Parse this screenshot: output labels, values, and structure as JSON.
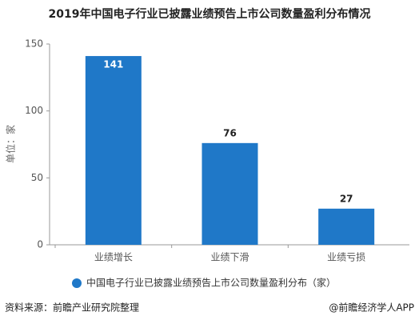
{
  "chart_data": {
    "type": "bar",
    "title": "2019年中国电子行业已披露业绩预告上市公司数量盈利分布情况",
    "y_label": "单位：家",
    "categories": [
      "业绩增长",
      "业绩下滑",
      "业绩亏损"
    ],
    "series": [
      {
        "name": "中国电子行业已披露业绩预告上市公司数量盈利分布（家）",
        "color": "#1f78c8",
        "values": [
          141,
          76,
          27
        ]
      }
    ],
    "ylim": [
      0,
      150
    ],
    "yticks": [
      0,
      50,
      100,
      150
    ],
    "grid": false,
    "legend": "bottom",
    "source": "资料来源：前瞻产业研究院整理",
    "credit": "@前瞻经济学人APP"
  }
}
